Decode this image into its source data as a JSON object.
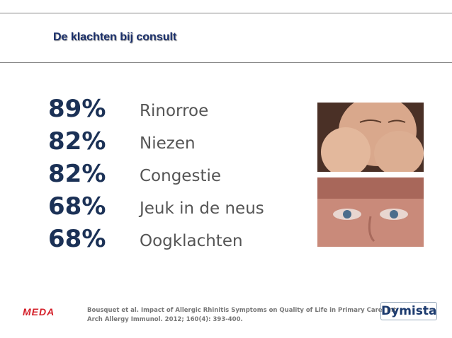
{
  "header": {
    "title": "De klachten bij consult"
  },
  "items": [
    {
      "percent": "89%",
      "label": "Rinorroe"
    },
    {
      "percent": "82%",
      "label": "Niezen"
    },
    {
      "percent": "82%",
      "label": "Congestie"
    },
    {
      "percent": "68%",
      "label": "Jeuk in de neus"
    },
    {
      "percent": "68%",
      "label": "Oogklachten"
    }
  ],
  "footer": {
    "logo_left": "MEDA",
    "citation": [
      "Bousquet et al. Impact of Allergic Rhinitis Symptoms on Quality of Life in Primary Care. Int",
      "Arch Allergy Immunol. 2012; 160(4): 393-400."
    ],
    "logo_right": "Dymista"
  }
}
